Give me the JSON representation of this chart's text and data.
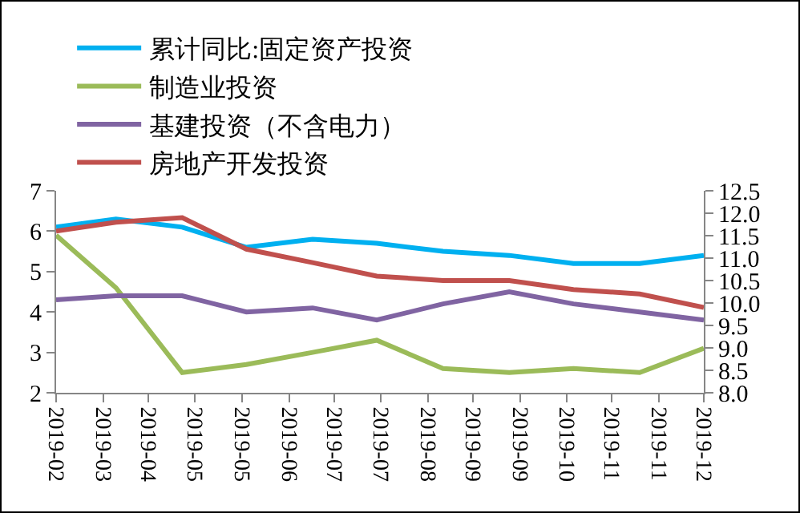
{
  "chart_data": {
    "type": "line",
    "x": [
      "2019-02-01",
      "2019-03-01",
      "2019-04-01",
      "2019-05-01",
      "2019-06-01",
      "2019-07-01",
      "2019-08-01",
      "2019-09-01",
      "2019-10-01",
      "2019-11-01",
      "2019-12-01"
    ],
    "series": [
      {
        "name": "累计同比:固定资产投资",
        "color": "#00b0f0",
        "values": [
          6.1,
          6.3,
          6.1,
          5.6,
          5.8,
          5.7,
          5.5,
          5.4,
          5.2,
          5.2,
          5.4
        ]
      },
      {
        "name": "制造业投资",
        "color": "#9bbb59",
        "values": [
          5.9,
          4.6,
          2.5,
          2.7,
          3.0,
          3.3,
          2.6,
          2.5,
          2.6,
          2.5,
          3.1
        ]
      },
      {
        "name": "基建投资（不含电力）",
        "color": "#8064a2",
        "values": [
          4.3,
          4.4,
          4.4,
          4.0,
          4.1,
          3.8,
          4.2,
          4.5,
          4.2,
          4.0,
          3.8
        ]
      },
      {
        "name": "房地产开发投资",
        "color": "#c0504d",
        "axis": "y2",
        "values": [
          11.6,
          11.8,
          11.9,
          11.2,
          10.9,
          10.6,
          10.5,
          10.5,
          10.3,
          10.2,
          9.9
        ]
      }
    ],
    "xlim": [
      "2019-02-01",
      "2019-12-01"
    ],
    "xticks": [
      {
        "value": "2019-02-01",
        "label": "2019-02"
      },
      {
        "value": "2019-02-23",
        "label": "2019-03"
      },
      {
        "value": "2019-03-16",
        "label": "2019-04"
      },
      {
        "value": "2019-04-07",
        "label": "2019-05"
      },
      {
        "value": "2019-04-29",
        "label": "2019-05"
      },
      {
        "value": "2019-05-21",
        "label": "2019-06"
      },
      {
        "value": "2019-06-11",
        "label": "2019-07"
      },
      {
        "value": "2019-07-03",
        "label": "2019-07"
      },
      {
        "value": "2019-07-25",
        "label": "2019-08"
      },
      {
        "value": "2019-08-15",
        "label": "2019-09"
      },
      {
        "value": "2019-09-06",
        "label": "2019-09"
      },
      {
        "value": "2019-09-28",
        "label": "2019-10"
      },
      {
        "value": "2019-10-19",
        "label": "2019-11"
      },
      {
        "value": "2019-11-10",
        "label": "2019-11"
      },
      {
        "value": "2019-12-01",
        "label": "2019-12"
      }
    ],
    "ylim": [
      2,
      7
    ],
    "yticks": [
      2,
      3,
      4,
      5,
      6,
      7
    ],
    "y2lim": [
      8,
      12.5
    ],
    "y2ticks": [
      {
        "value": 8,
        "label": "8.0"
      },
      {
        "value": 8.5,
        "label": "8.5"
      },
      {
        "value": 9,
        "label": "9.0"
      },
      {
        "value": 9.5,
        "label": "9.5"
      },
      {
        "value": 10,
        "label": "10.0"
      },
      {
        "value": 10.5,
        "label": "10.5"
      },
      {
        "value": 11,
        "label": "11.0"
      },
      {
        "value": 11.5,
        "label": "11.5"
      },
      {
        "value": 12,
        "label": "12.0"
      },
      {
        "value": 12.5,
        "label": "12.5"
      }
    ],
    "grid": false,
    "legend": "top",
    "marker": "none",
    "line_style": "solid"
  }
}
